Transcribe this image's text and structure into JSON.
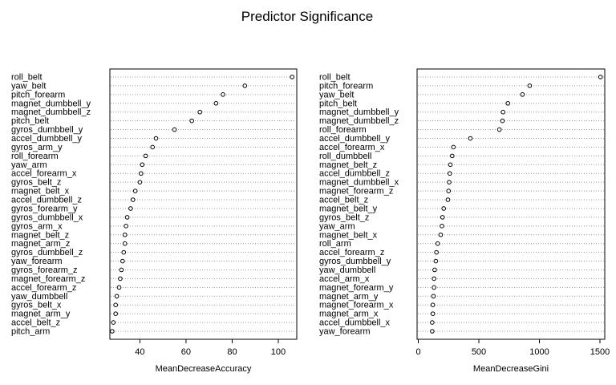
{
  "title": "Predictor Significance",
  "chart_data": [
    {
      "type": "scatter",
      "subtype": "dotchart",
      "xlabel": "MeanDecreaseAccuracy",
      "xlim": [
        27,
        108
      ],
      "xticks": [
        40,
        60,
        80,
        100
      ],
      "grid": "dotted horizontal lines",
      "labels": [
        "roll_belt",
        "yaw_belt",
        "pitch_forearm",
        "magnet_dumbbell_y",
        "magnet_dumbbell_z",
        "pitch_belt",
        "gyros_dumbbell_y",
        "accel_dumbbell_y",
        "gyros_arm_y",
        "roll_forearm",
        "yaw_arm",
        "accel_forearm_x",
        "gyros_belt_z",
        "magnet_belt_x",
        "accel_dumbbell_z",
        "gyros_forearm_y",
        "gyros_dumbbell_x",
        "gyros_arm_x",
        "magnet_belt_z",
        "magnet_arm_z",
        "gyros_dumbbell_z",
        "yaw_forearm",
        "gyros_forearm_z",
        "magnet_forearm_z",
        "accel_forearm_z",
        "yaw_dumbbell",
        "gyros_belt_x",
        "magnet_arm_y",
        "accel_belt_z",
        "pitch_arm"
      ],
      "values": [
        106,
        85.5,
        76,
        73,
        66,
        62.5,
        55,
        47,
        45.5,
        42.5,
        41,
        40.5,
        40,
        38,
        37,
        36,
        34.5,
        34,
        33.5,
        33.5,
        33,
        32.5,
        32,
        31.5,
        31,
        30,
        29.5,
        29.5,
        28.5,
        28
      ]
    },
    {
      "type": "scatter",
      "subtype": "dotchart",
      "xlabel": "MeanDecreaseGini",
      "xlim": [
        -10,
        1540
      ],
      "xticks": [
        0,
        500,
        1000,
        1500
      ],
      "grid": "dotted horizontal lines",
      "labels": [
        "roll_belt",
        "pitch_forearm",
        "yaw_belt",
        "pitch_belt",
        "magnet_dumbbell_y",
        "magnet_dumbbell_z",
        "roll_forearm",
        "accel_dumbbell_y",
        "accel_forearm_x",
        "roll_dumbbell",
        "magnet_belt_z",
        "accel_dumbbell_z",
        "magnet_dumbbell_x",
        "magnet_forearm_z",
        "accel_belt_z",
        "magnet_belt_y",
        "gyros_belt_z",
        "yaw_arm",
        "magnet_belt_x",
        "roll_arm",
        "accel_forearm_z",
        "gyros_dumbbell_y",
        "yaw_dumbbell",
        "accel_arm_x",
        "magnet_forearm_y",
        "magnet_arm_y",
        "magnet_forearm_x",
        "magnet_arm_x",
        "accel_dumbbell_x",
        "yaw_forearm"
      ],
      "values": [
        1505,
        920,
        860,
        740,
        700,
        695,
        670,
        430,
        290,
        280,
        265,
        260,
        255,
        250,
        245,
        210,
        200,
        195,
        185,
        160,
        150,
        145,
        135,
        130,
        130,
        125,
        120,
        120,
        115,
        115
      ]
    }
  ]
}
